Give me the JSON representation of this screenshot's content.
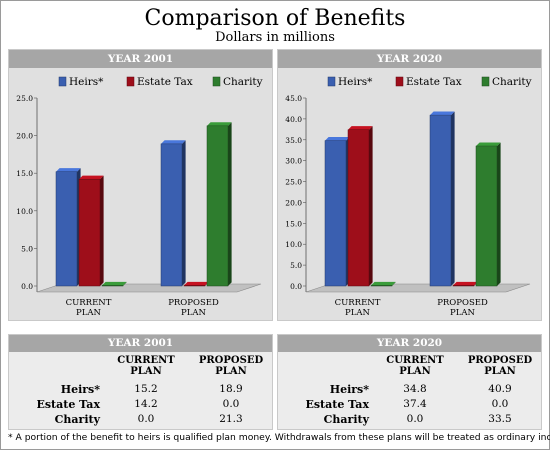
{
  "page": {
    "title": "Comparison of Benefits",
    "subtitle": "Dollars in millions",
    "footnote": "* A portion of the benefit to heirs is qualified plan money. Withdrawals from these plans will be treated as ordinary income."
  },
  "chart_data": [
    {
      "type": "bar",
      "title": "YEAR 2001",
      "categories": [
        "CURRENT PLAN",
        "PROPOSED PLAN"
      ],
      "category_lines": [
        [
          "CURRENT",
          "PLAN"
        ],
        [
          "PROPOSED",
          "PLAN"
        ]
      ],
      "series": [
        {
          "name": "Heirs*",
          "color": "#3a5fb0",
          "values": [
            15.2,
            18.9
          ]
        },
        {
          "name": "Estate Tax",
          "color": "#9e0e1a",
          "values": [
            14.2,
            0.0
          ]
        },
        {
          "name": "Charity",
          "color": "#2e7d2e",
          "values": [
            0.0,
            21.3
          ]
        }
      ],
      "ylim": [
        0,
        25
      ],
      "yticks": [
        "0.0",
        "5.0",
        "10.0",
        "15.0",
        "20.0",
        "25.0"
      ],
      "legend": "top",
      "grid": false
    },
    {
      "type": "bar",
      "title": "YEAR 2020",
      "categories": [
        "CURRENT PLAN",
        "PROPOSED PLAN"
      ],
      "category_lines": [
        [
          "CURRENT",
          "PLAN"
        ],
        [
          "PROPOSED",
          "PLAN"
        ]
      ],
      "series": [
        {
          "name": "Heirs*",
          "color": "#3a5fb0",
          "values": [
            34.8,
            40.9
          ]
        },
        {
          "name": "Estate Tax",
          "color": "#9e0e1a",
          "values": [
            37.4,
            0.0
          ]
        },
        {
          "name": "Charity",
          "color": "#2e7d2e",
          "values": [
            0.0,
            33.5
          ]
        }
      ],
      "ylim": [
        0,
        45
      ],
      "yticks": [
        "0.0",
        "5.0",
        "10.0",
        "15.0",
        "20.0",
        "25.0",
        "30.0",
        "35.0",
        "40.0",
        "45.0"
      ],
      "legend": "top",
      "grid": false
    }
  ],
  "tables": [
    {
      "title": "YEAR 2001",
      "columns": [
        [
          "CURRENT",
          "PLAN"
        ],
        [
          "PROPOSED",
          "PLAN"
        ]
      ],
      "rows": [
        {
          "label": "Heirs*",
          "values": [
            "15.2",
            "18.9"
          ]
        },
        {
          "label": "Estate Tax",
          "values": [
            "14.2",
            "0.0"
          ]
        },
        {
          "label": "Charity",
          "values": [
            "0.0",
            "21.3"
          ]
        }
      ]
    },
    {
      "title": "YEAR 2020",
      "columns": [
        [
          "CURRENT",
          "PLAN"
        ],
        [
          "PROPOSED",
          "PLAN"
        ]
      ],
      "rows": [
        {
          "label": "Heirs*",
          "values": [
            "34.8",
            "40.9"
          ]
        },
        {
          "label": "Estate Tax",
          "values": [
            "37.4",
            "0.0"
          ]
        },
        {
          "label": "Charity",
          "values": [
            "0.0",
            "33.5"
          ]
        }
      ]
    }
  ]
}
